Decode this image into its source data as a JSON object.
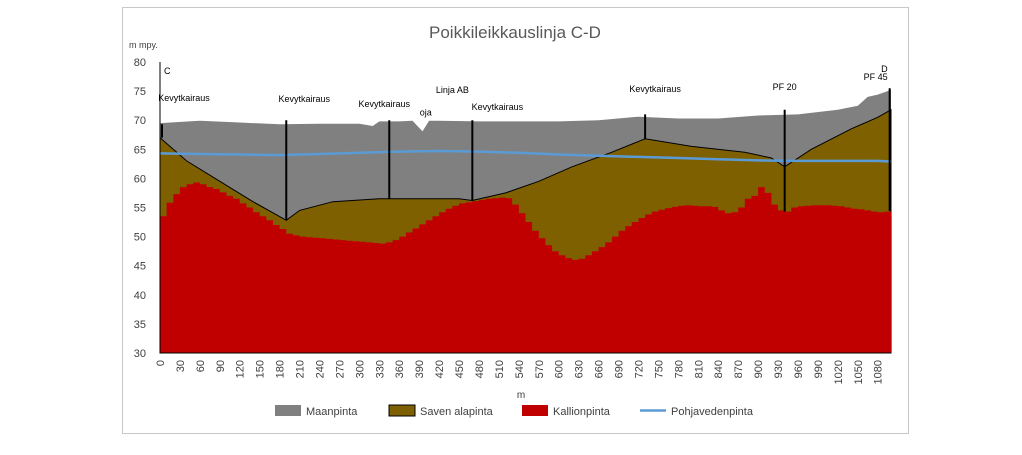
{
  "chart_data": {
    "type": "area",
    "title": "Poikkileikkauslinja C-D",
    "ylabel": "m mpy.",
    "xlabel": "m",
    "ylim": [
      30,
      80
    ],
    "xlim": [
      0,
      1100
    ],
    "y_ticks": [
      30,
      35,
      40,
      45,
      50,
      55,
      60,
      65,
      70,
      75,
      80
    ],
    "x_ticks": [
      0,
      30,
      60,
      90,
      120,
      150,
      180,
      210,
      240,
      270,
      300,
      330,
      360,
      390,
      420,
      450,
      480,
      510,
      540,
      570,
      600,
      630,
      660,
      690,
      720,
      750,
      780,
      810,
      840,
      870,
      900,
      930,
      960,
      990,
      1020,
      1050,
      1080
    ],
    "grid": false,
    "legend_position": "bottom",
    "colors": {
      "Maanpinta": "#808080",
      "Saven alapinta": "#7f6000",
      "Kallionpinta": "#c00000",
      "Pohjavedenpinta": "#5b9bd5"
    },
    "series": [
      {
        "name": "Maanpinta",
        "x": [
          0,
          60,
          120,
          180,
          240,
          300,
          320,
          330,
          360,
          380,
          395,
          405,
          420,
          480,
          540,
          600,
          660,
          720,
          780,
          840,
          900,
          960,
          1020,
          1050,
          1065,
          1080,
          1100
        ],
        "values": [
          69.5,
          69.9,
          69.6,
          69.3,
          69.4,
          69.4,
          69.0,
          69.8,
          69.8,
          69.9,
          68.1,
          69.9,
          69.9,
          69.8,
          69.8,
          69.8,
          70.0,
          70.6,
          70.3,
          70.3,
          70.8,
          71.0,
          71.8,
          72.5,
          74.0,
          74.4,
          75.2
        ]
      },
      {
        "name": "Saven alapinta",
        "x": [
          0,
          40,
          90,
          140,
          190,
          210,
          260,
          330,
          380,
          450,
          470,
          520,
          570,
          620,
          680,
          730,
          800,
          880,
          920,
          940,
          980,
          1040,
          1080,
          1100
        ],
        "values": [
          67.0,
          63.0,
          59.5,
          56.0,
          52.8,
          54.5,
          56.0,
          56.5,
          56.5,
          56.5,
          56.2,
          57.5,
          59.5,
          62.0,
          64.5,
          66.8,
          65.5,
          64.5,
          63.5,
          62.0,
          65.0,
          68.5,
          70.5,
          71.8
        ]
      },
      {
        "name": "Kallionpinta",
        "x": [
          0,
          10,
          20,
          30,
          40,
          50,
          60,
          70,
          80,
          90,
          100,
          110,
          120,
          130,
          140,
          150,
          160,
          170,
          180,
          190,
          200,
          210,
          220,
          230,
          240,
          250,
          260,
          270,
          280,
          290,
          300,
          310,
          320,
          330,
          340,
          350,
          360,
          370,
          380,
          390,
          400,
          410,
          420,
          430,
          440,
          450,
          460,
          470,
          480,
          490,
          500,
          510,
          520,
          530,
          540,
          550,
          560,
          570,
          580,
          590,
          600,
          610,
          620,
          630,
          640,
          650,
          660,
          670,
          680,
          690,
          700,
          710,
          720,
          730,
          740,
          750,
          760,
          770,
          780,
          790,
          800,
          810,
          820,
          830,
          840,
          850,
          860,
          870,
          880,
          890,
          900,
          910,
          920,
          930,
          940,
          950,
          960,
          970,
          980,
          990,
          1000,
          1010,
          1020,
          1030,
          1040,
          1050,
          1060,
          1070,
          1080,
          1090,
          1100
        ],
        "values": [
          53.5,
          55.8,
          57.3,
          58.5,
          59.0,
          59.3,
          59.0,
          58.5,
          58.2,
          57.6,
          57.0,
          56.5,
          55.7,
          55.0,
          54.2,
          53.5,
          52.8,
          52.0,
          51.3,
          50.5,
          50.2,
          50.0,
          49.9,
          49.8,
          49.7,
          49.6,
          49.5,
          49.4,
          49.3,
          49.2,
          49.1,
          49.0,
          48.9,
          48.8,
          49.0,
          49.4,
          50.0,
          50.7,
          51.4,
          52.1,
          52.8,
          53.5,
          54.2,
          54.8,
          55.3,
          55.7,
          55.9,
          56.1,
          56.3,
          56.5,
          56.6,
          56.7,
          56.6,
          55.5,
          54.0,
          52.5,
          51.0,
          49.7,
          48.5,
          47.5,
          46.8,
          46.3,
          46.0,
          46.2,
          46.8,
          47.5,
          48.2,
          49.0,
          50.0,
          51.0,
          51.8,
          52.5,
          53.2,
          53.8,
          54.3,
          54.6,
          54.9,
          55.1,
          55.3,
          55.4,
          55.3,
          55.2,
          55.2,
          55.1,
          54.5,
          54.0,
          54.2,
          55.0,
          56.5,
          57.0,
          58.5,
          57.5,
          55.5,
          54.5,
          54.3,
          55.0,
          55.2,
          55.3,
          55.4,
          55.4,
          55.4,
          55.3,
          55.2,
          55.0,
          54.8,
          54.7,
          54.5,
          54.3,
          54.2,
          54.3,
          54.4
        ]
      },
      {
        "name": "Pohjavedenpinta",
        "x": [
          0,
          60,
          120,
          180,
          240,
          300,
          360,
          420,
          480,
          540,
          600,
          660,
          720,
          780,
          840,
          900,
          960,
          1020,
          1080,
          1100
        ],
        "values": [
          64.3,
          64.2,
          64.1,
          64.0,
          64.2,
          64.4,
          64.6,
          64.7,
          64.6,
          64.4,
          64.1,
          63.9,
          63.7,
          63.5,
          63.3,
          63.1,
          63.0,
          63.0,
          63.0,
          62.9
        ]
      }
    ],
    "boreholes": [
      {
        "label": "Kevytkairaus",
        "x": 3,
        "top": 69.3,
        "bottom": 67.0
      },
      {
        "label": "Kevytkairaus",
        "x": 190,
        "top": 70.0,
        "bottom": 52.8
      },
      {
        "label": "Kevytkairaus",
        "x": 345,
        "top": 70.0,
        "bottom": 56.5
      },
      {
        "label": "Kevytkairaus",
        "x": 470,
        "top": 70.0,
        "bottom": 56.2
      },
      {
        "label": "Kevytkairaus",
        "x": 730,
        "top": 71.0,
        "bottom": 66.8
      },
      {
        "label": "PF 20",
        "x": 940,
        "top": 71.8,
        "bottom": 54.3
      },
      {
        "label": "PF 45",
        "x": 1098,
        "top": 75.5,
        "bottom": 54.4
      }
    ],
    "annotations": [
      {
        "text": "C",
        "x": 3,
        "y": 77.9
      },
      {
        "text": "D",
        "x": 1090,
        "y": 78.3
      },
      {
        "text": "Linja AB",
        "x": 440,
        "y": 74.7
      },
      {
        "text": "oja",
        "x": 400,
        "y": 70.8
      }
    ]
  }
}
